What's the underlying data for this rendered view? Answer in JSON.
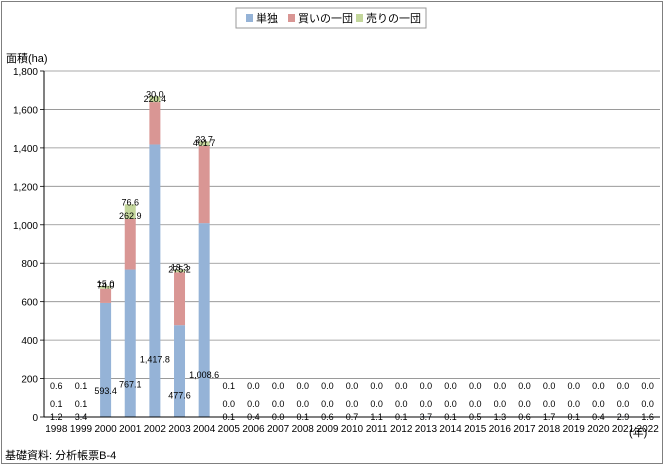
{
  "chart_data": {
    "type": "bar",
    "stacked": true,
    "ylabel": "面積(ha)",
    "xunit": "(年)",
    "source": "基礎資料: 分析帳票B-4",
    "ylim": [
      0,
      1800
    ],
    "yticks": [
      0,
      200,
      400,
      600,
      800,
      1000,
      1200,
      1400,
      1600,
      1800
    ],
    "ytick_labels": [
      "0",
      "200",
      "400",
      "600",
      "800",
      "1,000",
      "1,200",
      "1,400",
      "1,600",
      "1,800"
    ],
    "grid": true,
    "legend_position": "top",
    "categories": [
      "1998",
      "1999",
      "2000",
      "2001",
      "2002",
      "2003",
      "2004",
      "2005",
      "2006",
      "2007",
      "2008",
      "2009",
      "2010",
      "2011",
      "2012",
      "2013",
      "2014",
      "2015",
      "2016",
      "2017",
      "2018",
      "2019",
      "2020",
      "2021",
      "2022"
    ],
    "series": [
      {
        "name": "単独",
        "color": "#95b3d7",
        "values": [
          1.2,
          3.4,
          593.4,
          767.1,
          1417.8,
          477.6,
          1008.6,
          0.1,
          0.4,
          0.0,
          0.1,
          0.6,
          0.7,
          1.1,
          0.1,
          3.7,
          0.1,
          0.5,
          1.3,
          0.6,
          1.7,
          0.1,
          0.4,
          2.9,
          1.6
        ],
        "labels": [
          "1.2",
          "3.4",
          "593.4",
          "767.1",
          "1,417.8",
          "477.6",
          "1,008.6",
          "0.1",
          "0.4",
          "0.0",
          "0.1",
          "0.6",
          "0.7",
          "1.1",
          "0.1",
          "3.7",
          "0.1",
          "0.5",
          "1.3",
          "0.6",
          "1.7",
          "0.1",
          "0.4",
          "2.9",
          "1.6"
        ]
      },
      {
        "name": "買いの一団",
        "color": "#d99694",
        "values": [
          0.1,
          0.1,
          74.0,
          262.9,
          220.4,
          275.2,
          401.7,
          0.0,
          0.0,
          0.0,
          0.0,
          0.0,
          0.0,
          0.0,
          0.0,
          0.0,
          0.0,
          0.0,
          0.0,
          0.0,
          0.0,
          0.0,
          0.0,
          0.0,
          0.0
        ],
        "labels": [
          "0.1",
          "0.1",
          "74.0",
          "262.9",
          "220.4",
          "275.2",
          "401.7",
          "0.0",
          "0.0",
          "0.0",
          "0.0",
          "0.0",
          "0.0",
          "0.0",
          "0.0",
          "0.0",
          "0.0",
          "0.0",
          "0.0",
          "0.0",
          "0.0",
          "0.0",
          "0.0",
          "0.0",
          "0.0"
        ]
      },
      {
        "name": "売りの一団",
        "color": "#c3d69b",
        "values": [
          0.6,
          0.1,
          15.0,
          76.6,
          30.0,
          13.3,
          23.7,
          0.1,
          0.0,
          0.0,
          0.0,
          0.0,
          0.0,
          0.0,
          0.0,
          0.0,
          0.0,
          0.0,
          0.0,
          0.0,
          0.0,
          0.0,
          0.0,
          0.0,
          0.0
        ],
        "labels": [
          "0.6",
          "0.1",
          "15.0",
          "76.6",
          "30.0",
          "13.3",
          "23.7",
          "0.1",
          "0.0",
          "0.0",
          "0.0",
          "0.0",
          "0.0",
          "0.0",
          "0.0",
          "0.0",
          "0.0",
          "0.0",
          "0.0",
          "0.0",
          "0.0",
          "0.0",
          "0.0",
          "0.0",
          "0.0"
        ]
      }
    ]
  }
}
